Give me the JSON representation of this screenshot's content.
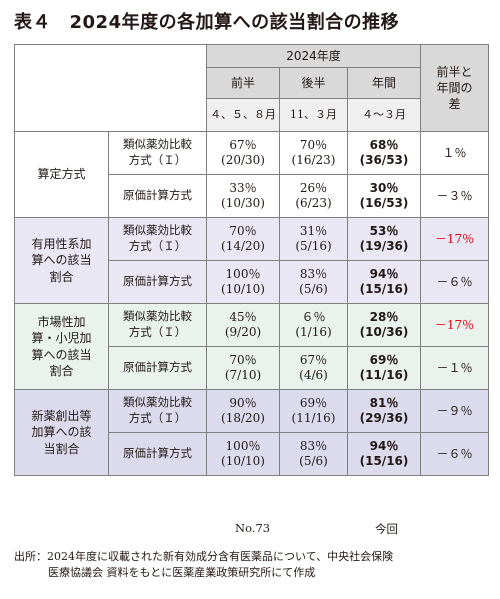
{
  "title": "表４　2024年度の各加算への該当割合の推移",
  "header": {
    "year": "2024年度",
    "col1": "前半",
    "col2": "後半",
    "col3": "年間",
    "col1_sub": "４、５、８月",
    "col2_sub": "11、３月",
    "col3_sub": "４～３月",
    "diff": "前半と年間の差"
  },
  "groups": [
    {
      "category": "算定方式",
      "rows": [
        {
          "method": "類似薬効比較方式（Ｉ）",
          "v1": "67％",
          "v1d": "(20/30)",
          "v2": "70％",
          "v2d": "(16/23)",
          "v3": "68％",
          "v3d": "(36/53)",
          "diff": "１％"
        },
        {
          "method": "原価計算方式",
          "v1": "33％",
          "v1d": "(10/30)",
          "v2": "26％",
          "v2d": "(6/23)",
          "v3": "30％",
          "v3d": "(16/53)",
          "diff": "－３％"
        }
      ]
    },
    {
      "category": "有用性系加算への該当割合",
      "rows": [
        {
          "method": "類似薬効比較方式（Ｉ）",
          "v1": "70％",
          "v1d": "(14/20)",
          "v2": "31％",
          "v2d": "(5/16)",
          "v3": "53％",
          "v3d": "(19/36)",
          "diff": "－17％"
        },
        {
          "method": "原価計算方式",
          "v1": "100％",
          "v1d": "(10/10)",
          "v2": "83％",
          "v2d": "(5/6)",
          "v3": "94％",
          "v3d": "(15/16)",
          "diff": "－６％"
        }
      ]
    },
    {
      "category": "市場性加算・小児加算への該当割合",
      "rows": [
        {
          "method": "類似薬効比較方式（Ｉ）",
          "v1": "45％",
          "v1d": "(9/20)",
          "v2": "６％",
          "v2d": "(1/16)",
          "v3": "28％",
          "v3d": "(10/36)",
          "diff": "－17％"
        },
        {
          "method": "原価計算方式",
          "v1": "70％",
          "v1d": "(7/10)",
          "v2": "67％",
          "v2d": "(4/6)",
          "v3": "69％",
          "v3d": "(11/16)",
          "diff": "－１％"
        }
      ]
    },
    {
      "category": "新薬創出等加算への該当割合",
      "rows": [
        {
          "method": "類似薬効比較方式（Ｉ）",
          "v1": "90％",
          "v1d": "(18/20)",
          "v2": "69％",
          "v2d": "(11/16)",
          "v3": "81％",
          "v3d": "(29/36)",
          "diff": "－９％"
        },
        {
          "method": "原価計算方式",
          "v1": "100％",
          "v1d": "(10/10)",
          "v2": "83％",
          "v2d": "(5/6)",
          "v3": "94％",
          "v3d": "(15/16)",
          "diff": "－６％"
        }
      ]
    }
  ],
  "below_left": "No.73",
  "below_right": "今回",
  "source_line1": "出所：2024年度に収載された新有効成分含有医薬品について、中央社会保険",
  "source_line2": "医療協議会 資料をもとに医薬産業政策研究所にて作成",
  "highlight_color": "#e60012"
}
